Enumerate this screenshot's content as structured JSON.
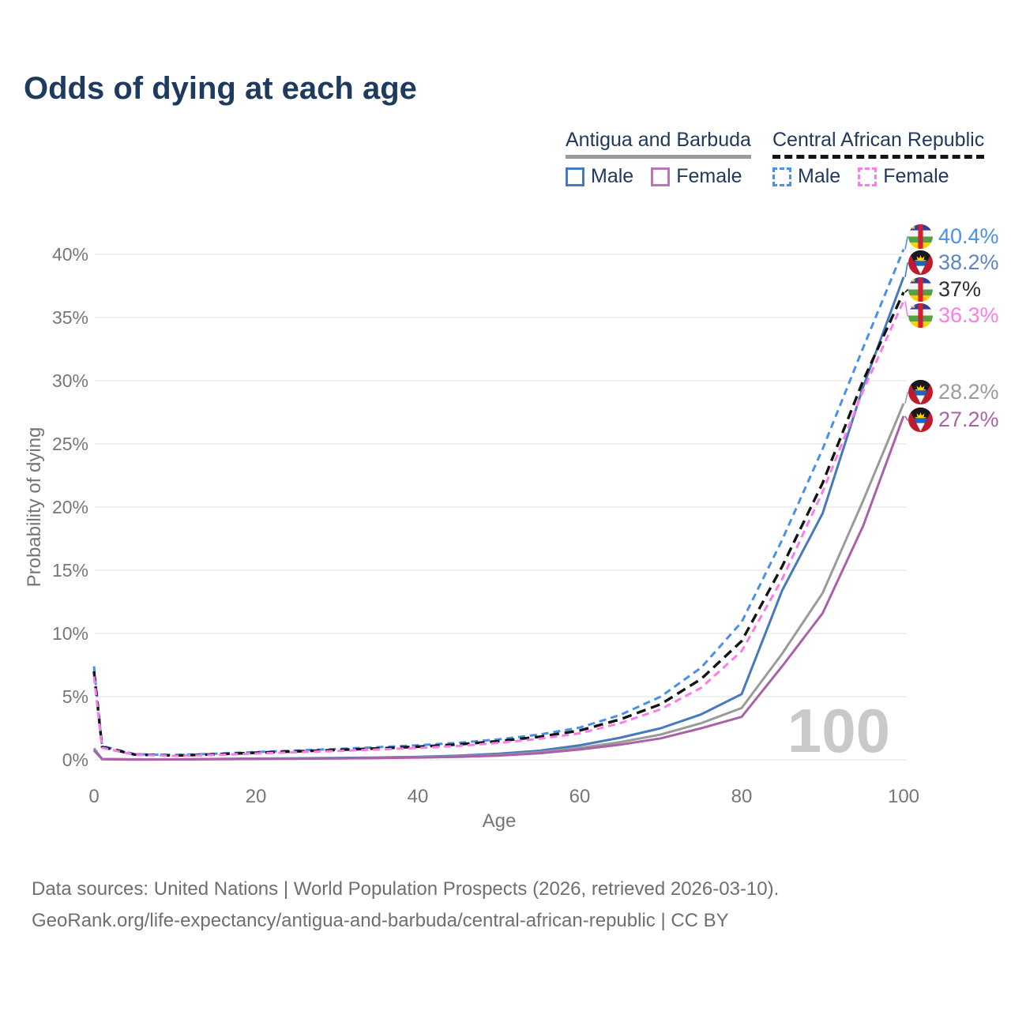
{
  "title": "Odds of dying at each age",
  "legend": {
    "groups": [
      {
        "country": "Antigua and Barbuda",
        "underline_style": "solid",
        "underline_color": "#9a9a9a",
        "items": [
          {
            "label": "Male",
            "color": "#4679bd",
            "dashed": false
          },
          {
            "label": "Female",
            "color": "#bb76b4",
            "dashed": false
          }
        ]
      },
      {
        "country": "Central African Republic",
        "underline_style": "dashed",
        "underline_color": "#141414",
        "items": [
          {
            "label": "Male",
            "color": "#4a90e8",
            "dashed": true
          },
          {
            "label": "Female",
            "color": "#fb7ce8",
            "dashed": true
          }
        ]
      }
    ]
  },
  "watermark": "100",
  "footer": {
    "line1": "Data sources: United Nations | World Population Prospects (2026, retrieved 2026-03-10).",
    "line2": "GeoRank.org/life-expectancy/antigua-and-barbuda/central-african-republic | CC BY"
  },
  "chart_data": {
    "type": "line",
    "title": "Odds of dying at each age",
    "xlabel": "Age",
    "ylabel": "Probability of dying",
    "xlim": [
      0,
      100
    ],
    "ylim": [
      0,
      42
    ],
    "grid": true,
    "legend_position": "top-right",
    "x_ticks": [
      {
        "label": "0",
        "value": 0
      },
      {
        "label": "20",
        "value": 20
      },
      {
        "label": "40",
        "value": 40
      },
      {
        "label": "60",
        "value": 60
      },
      {
        "label": "80",
        "value": 80
      },
      {
        "label": "100",
        "value": 100
      }
    ],
    "y_ticks": [
      {
        "label": "0%",
        "value": 0
      },
      {
        "label": "5%",
        "value": 5
      },
      {
        "label": "10%",
        "value": 10
      },
      {
        "label": "15%",
        "value": 15
      },
      {
        "label": "20%",
        "value": 20
      },
      {
        "label": "25%",
        "value": 25
      },
      {
        "label": "30%",
        "value": 30
      },
      {
        "label": "35%",
        "value": 35
      },
      {
        "label": "40%",
        "value": 40
      }
    ],
    "x": [
      0,
      1,
      5,
      10,
      15,
      20,
      25,
      30,
      35,
      40,
      45,
      50,
      55,
      60,
      65,
      70,
      75,
      80,
      85,
      90,
      95,
      100
    ],
    "series": [
      {
        "name": "Central African Republic — Male",
        "country": "Central African Republic",
        "sex": "Male",
        "color": "#4a90e8",
        "dashed": true,
        "end_label": "40.4%",
        "label_color": "#4a90e8",
        "flag": "central-african-republic",
        "values": [
          7.4,
          1.1,
          0.45,
          0.38,
          0.48,
          0.62,
          0.74,
          0.86,
          1.0,
          1.15,
          1.35,
          1.62,
          2.0,
          2.55,
          3.55,
          5.0,
          7.3,
          10.9,
          17.4,
          24.6,
          32.6,
          40.4
        ]
      },
      {
        "name": "Antigua and Barbuda — Male",
        "country": "Antigua and Barbuda",
        "sex": "Male",
        "color": "#4679bd",
        "dashed": false,
        "end_label": "38.2%",
        "label_color": "#5b86c4",
        "flag": "antigua-and-barbuda",
        "values": [
          0.9,
          0.07,
          0.03,
          0.04,
          0.07,
          0.1,
          0.12,
          0.15,
          0.18,
          0.24,
          0.33,
          0.48,
          0.72,
          1.15,
          1.75,
          2.5,
          3.6,
          5.2,
          13.4,
          19.5,
          29.5,
          38.2
        ]
      },
      {
        "name": "Central African Republic — Both sexes",
        "country": "Central African Republic",
        "sex": "Both sexes",
        "color": "#141414",
        "dashed": true,
        "end_label": "37%",
        "label_color": "#2e2e2e",
        "flag": "central-african-republic",
        "values": [
          7.0,
          1.02,
          0.42,
          0.34,
          0.43,
          0.56,
          0.67,
          0.78,
          0.9,
          1.04,
          1.22,
          1.48,
          1.82,
          2.32,
          3.2,
          4.4,
          6.4,
          9.4,
          15.3,
          21.9,
          30.0,
          37.0
        ]
      },
      {
        "name": "Central African Republic — Female",
        "country": "Central African Republic",
        "sex": "Female",
        "color": "#fb7ce8",
        "dashed": true,
        "end_label": "36.3%",
        "label_color": "#fb7ce8",
        "flag": "central-african-republic",
        "values": [
          6.6,
          0.95,
          0.4,
          0.31,
          0.39,
          0.5,
          0.6,
          0.7,
          0.81,
          0.94,
          1.1,
          1.34,
          1.66,
          2.1,
          2.9,
          4.0,
          5.7,
          8.6,
          14.3,
          21.2,
          29.2,
          36.3
        ]
      },
      {
        "name": "Antigua and Barbuda — Both sexes",
        "country": "Antigua and Barbuda",
        "sex": "Both sexes",
        "color": "#9a9a9a",
        "dashed": false,
        "end_label": "28.2%",
        "label_color": "#9a9a9a",
        "flag": "antigua-and-barbuda",
        "values": [
          0.85,
          0.06,
          0.03,
          0.03,
          0.06,
          0.08,
          0.1,
          0.12,
          0.15,
          0.2,
          0.27,
          0.39,
          0.6,
          0.95,
          1.4,
          2.0,
          2.9,
          4.1,
          8.4,
          13.2,
          20.5,
          28.2
        ]
      },
      {
        "name": "Antigua and Barbuda — Female",
        "country": "Antigua and Barbuda",
        "sex": "Female",
        "color": "#a961a8",
        "dashed": false,
        "end_label": "27.2%",
        "label_color": "#a961a8",
        "flag": "antigua-and-barbuda",
        "values": [
          0.75,
          0.05,
          0.02,
          0.03,
          0.05,
          0.07,
          0.09,
          0.11,
          0.14,
          0.18,
          0.24,
          0.34,
          0.52,
          0.82,
          1.2,
          1.7,
          2.5,
          3.4,
          7.4,
          11.6,
          18.5,
          27.2
        ]
      }
    ]
  }
}
